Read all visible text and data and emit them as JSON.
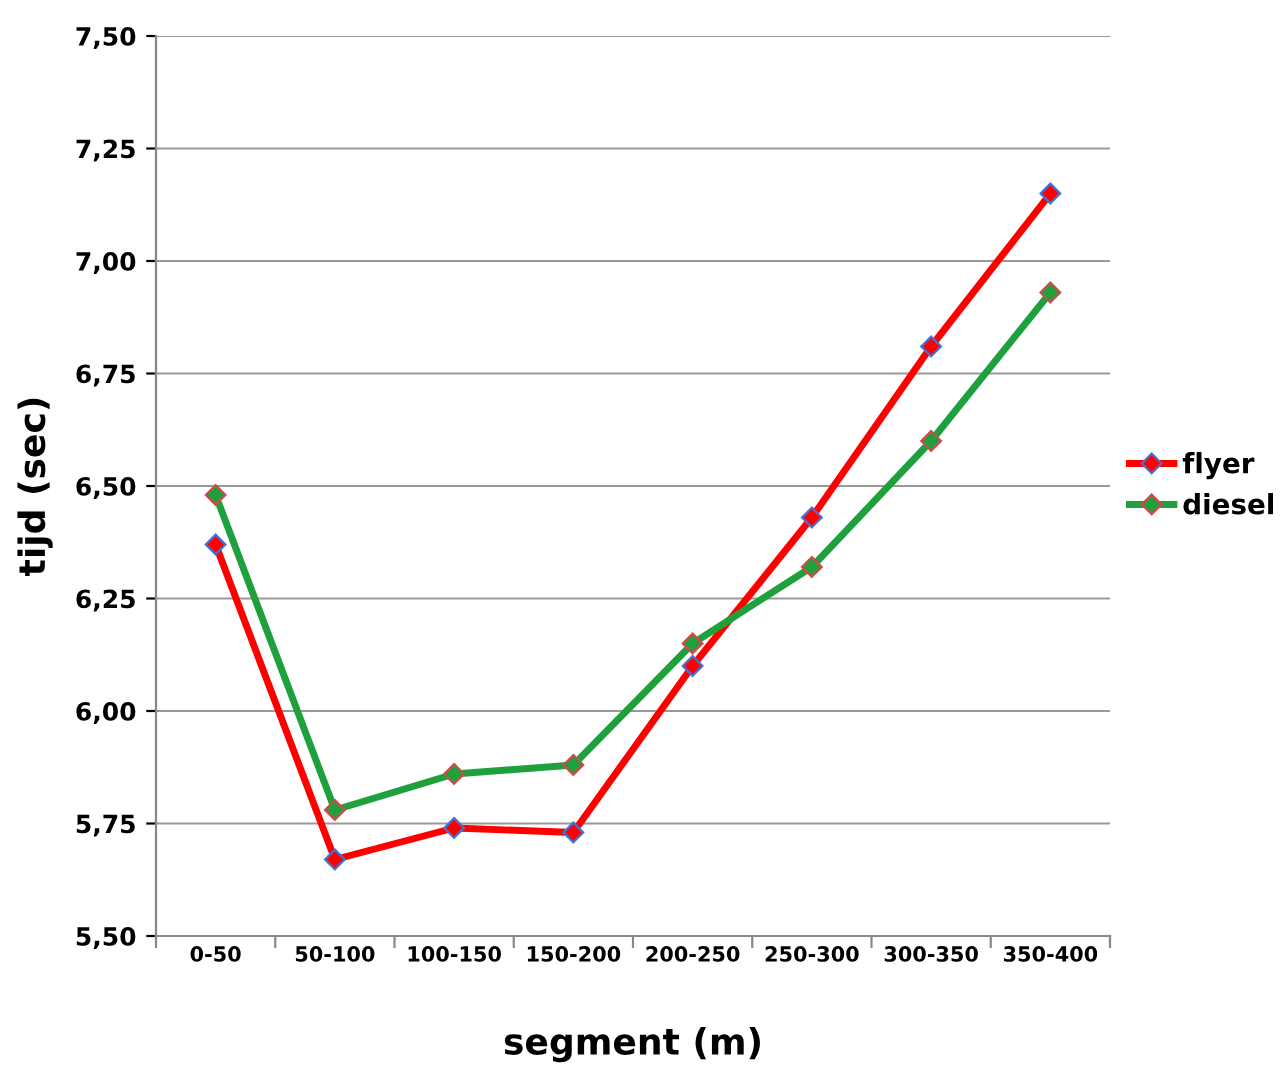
{
  "chart_data": {
    "type": "line",
    "xlabel": "segment (m)",
    "ylabel": "tijd (sec)",
    "categories": [
      "0-50",
      "50-100",
      "100-150",
      "150-200",
      "200-250",
      "250-300",
      "300-350",
      "350-400"
    ],
    "series": [
      {
        "name": "flyer",
        "color": "#ff0000",
        "values": [
          6.37,
          5.67,
          5.74,
          5.73,
          6.1,
          6.43,
          6.81,
          7.15
        ]
      },
      {
        "name": "diesel",
        "color": "#1ea03c",
        "values": [
          6.48,
          5.78,
          5.86,
          5.88,
          6.15,
          6.32,
          6.6,
          6.93
        ]
      }
    ],
    "ylim": [
      5.5,
      7.5
    ],
    "yticks": [
      {
        "value": 5.5,
        "label": "5,50"
      },
      {
        "value": 5.75,
        "label": "5,75"
      },
      {
        "value": 6.0,
        "label": "6,00"
      },
      {
        "value": 6.25,
        "label": "6,25"
      },
      {
        "value": 6.5,
        "label": "6,50"
      },
      {
        "value": 6.75,
        "label": "6,75"
      },
      {
        "value": 7.0,
        "label": "7,00"
      },
      {
        "value": 7.25,
        "label": "7,25"
      },
      {
        "value": 7.5,
        "label": "7,50"
      }
    ],
    "grid": "y",
    "legend": "right",
    "marker": "diamond",
    "line_style": "solid"
  }
}
